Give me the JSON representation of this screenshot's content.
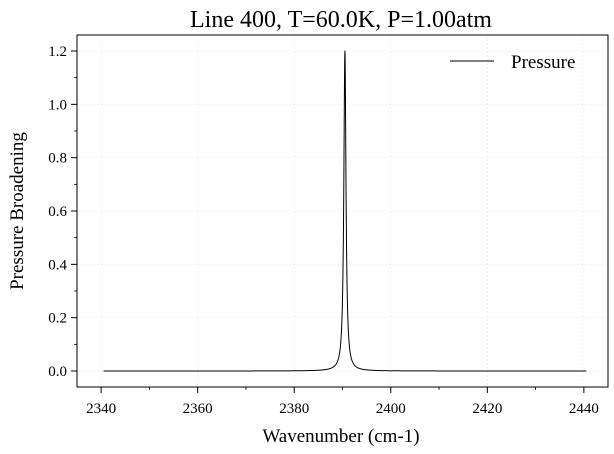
{
  "chart_data": {
    "type": "line",
    "title": "Line 400, T=60.0K, P=1.00atm",
    "xlabel": "Wavenumber (cm-1)",
    "ylabel": "Pressure Broadening",
    "xlim": [
      2335,
      2445
    ],
    "ylim": [
      -0.06,
      1.26
    ],
    "xticks": [
      2340,
      2360,
      2380,
      2400,
      2420,
      2440
    ],
    "yticks": [
      0.0,
      0.2,
      0.4,
      0.6,
      0.8,
      1.0,
      1.2
    ],
    "xtick_labels": [
      "2340",
      "2360",
      "2380",
      "2400",
      "2420",
      "2440"
    ],
    "ytick_labels": [
      "0.0",
      "0.2",
      "0.4",
      "0.6",
      "0.8",
      "1.0",
      "1.2"
    ],
    "grid": true,
    "legend_position": "top-right",
    "series": [
      {
        "name": "Pressure",
        "color": "#000000",
        "profile": "lorentzian",
        "x_range": [
          2340.5,
          2440.5
        ],
        "center": 2390.5,
        "peak": 1.2,
        "hwhm": 0.27
      }
    ]
  }
}
